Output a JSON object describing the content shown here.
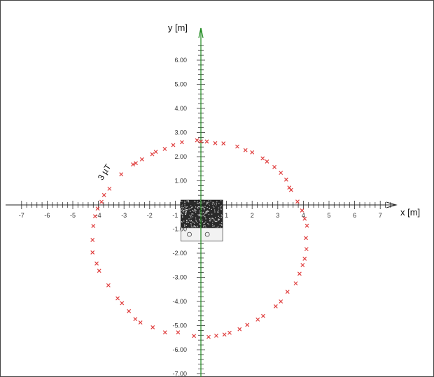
{
  "window": {
    "border_color": "#444444",
    "background": "#ffffff"
  },
  "chart_data": {
    "type": "scatter",
    "title": "",
    "xlabel": "x [m]",
    "ylabel": "y [m]",
    "xlim": [
      -7,
      7.5
    ],
    "ylim": [
      -7.2,
      7.3
    ],
    "grid": false,
    "x_tick_values": [
      -7,
      -6,
      -5,
      -4,
      -3,
      -2,
      -1,
      1,
      2,
      3,
      4,
      5,
      6,
      7
    ],
    "x_tick_labels": [
      "-7",
      "-6",
      "-5",
      "-4",
      "-3",
      "-2",
      "-1",
      "1",
      "2",
      "3",
      "4",
      "5",
      "6",
      "7"
    ],
    "y_tick_values": [
      6,
      5,
      4,
      3,
      2,
      1,
      -1,
      -2,
      -3,
      -4,
      -5,
      -6,
      -7
    ],
    "y_tick_labels": [
      "6.00",
      "5.00",
      "4.00",
      "3.00",
      "2.00",
      "1.00",
      "-1.00",
      "-2.00",
      "-3.00",
      "-4.00",
      "-5.00",
      "-6.00",
      "-7.00"
    ],
    "x_axis_color": "#222222",
    "y_axis_color": "#1f8a1f",
    "marker_color": "#e04040",
    "marker": "x",
    "series": [
      {
        "name": "3 µT",
        "points": [
          [
            0.0,
            2.63
          ],
          [
            0.56,
            2.56
          ],
          [
            0.88,
            2.55
          ],
          [
            1.42,
            2.42
          ],
          [
            1.74,
            2.27
          ],
          [
            2.0,
            2.18
          ],
          [
            2.41,
            1.93
          ],
          [
            2.58,
            1.8
          ],
          [
            2.87,
            1.57
          ],
          [
            3.12,
            1.33
          ],
          [
            3.33,
            1.05
          ],
          [
            3.45,
            0.72
          ],
          [
            3.52,
            0.62
          ],
          [
            3.77,
            0.14
          ],
          [
            3.95,
            -0.23
          ],
          [
            4.05,
            -0.57
          ],
          [
            4.14,
            -0.86
          ],
          [
            4.1,
            -1.37
          ],
          [
            4.12,
            -1.83
          ],
          [
            4.05,
            -2.23
          ],
          [
            3.97,
            -2.49
          ],
          [
            3.85,
            -2.85
          ],
          [
            3.7,
            -3.25
          ],
          [
            3.38,
            -3.6
          ],
          [
            3.12,
            -4.0
          ],
          [
            2.92,
            -4.2
          ],
          [
            2.43,
            -4.6
          ],
          [
            2.22,
            -4.75
          ],
          [
            1.81,
            -4.97
          ],
          [
            1.51,
            -5.15
          ],
          [
            1.12,
            -5.3
          ],
          [
            0.92,
            -5.37
          ],
          [
            0.6,
            -5.42
          ],
          [
            0.3,
            -5.47
          ],
          [
            -0.27,
            -5.43
          ],
          [
            -0.89,
            -5.28
          ],
          [
            -1.4,
            -5.28
          ],
          [
            -1.88,
            -5.07
          ],
          [
            -2.36,
            -4.87
          ],
          [
            -2.56,
            -4.73
          ],
          [
            -2.81,
            -4.4
          ],
          [
            -3.08,
            -4.07
          ],
          [
            -3.25,
            -3.87
          ],
          [
            -3.61,
            -3.33
          ],
          [
            -3.97,
            -2.73
          ],
          [
            -4.07,
            -2.43
          ],
          [
            -4.23,
            -1.97
          ],
          [
            -4.23,
            -1.45
          ],
          [
            -4.2,
            -0.87
          ],
          [
            -4.13,
            -0.47
          ],
          [
            -4.03,
            -0.15
          ],
          [
            -3.88,
            0.13
          ],
          [
            -3.78,
            0.41
          ],
          [
            -3.57,
            0.67
          ],
          [
            -3.11,
            1.27
          ],
          [
            -2.65,
            1.68
          ],
          [
            -2.54,
            1.73
          ],
          [
            -2.3,
            1.89
          ],
          [
            -1.9,
            2.1
          ],
          [
            -1.76,
            2.2
          ],
          [
            -1.41,
            2.32
          ],
          [
            -1.08,
            2.48
          ],
          [
            -0.74,
            2.6
          ],
          [
            -0.15,
            2.68
          ],
          [
            0.23,
            2.63
          ]
        ]
      }
    ],
    "curve_label": "3 µT"
  }
}
